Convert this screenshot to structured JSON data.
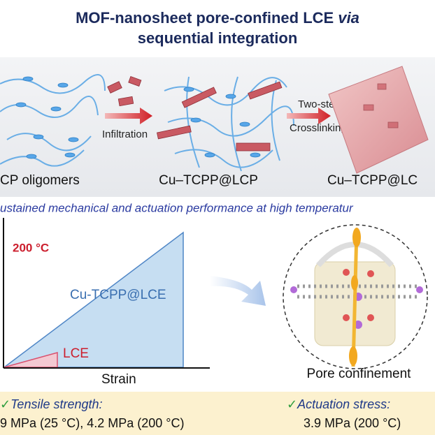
{
  "header": {
    "title_main": "MOF-nanosheet pore-confined LCE",
    "title_italic": "via",
    "title_line2": "sequential integration"
  },
  "scheme": {
    "step1": "Infiltration",
    "step2_line1": "Two-step",
    "step2_line2": "Crosslinking",
    "labels": [
      "CP oligomers",
      "Cu–TCPP@LCP",
      "Cu–TCPP@LC"
    ]
  },
  "subtitle": "ustained mechanical and actuation performance at high temperatur",
  "plot": {
    "temperature": "200 °C",
    "series_big": "Cu-TCPP@LCE",
    "series_small": "LCE",
    "x_label": "Strain"
  },
  "pore": {
    "caption": "Pore confinement"
  },
  "footer": {
    "left_heading": "Tensile strength:",
    "left_value": "9 MPa (25 °C), 4.2 MPa (200 °C)",
    "right_heading": "Actuation stress:",
    "right_value": "3.9 MPa (200 °C)"
  }
}
